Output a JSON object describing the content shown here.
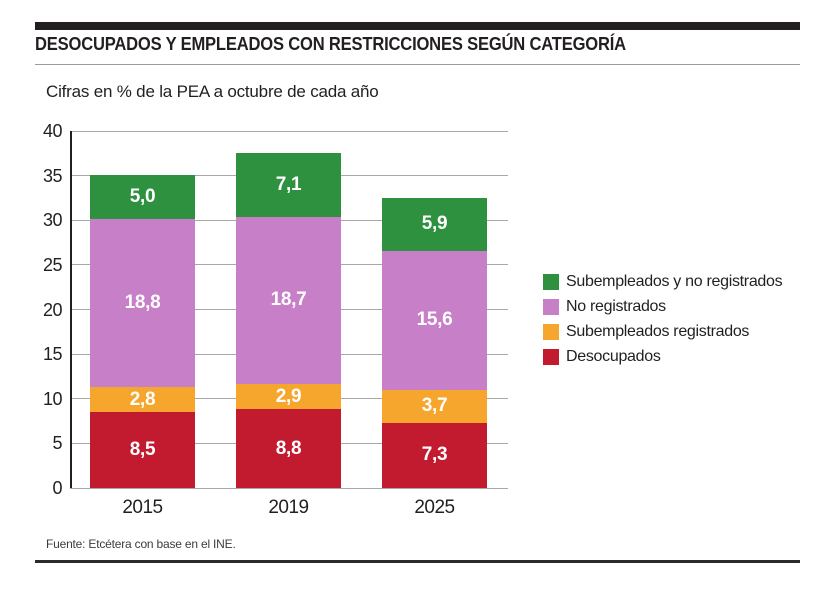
{
  "header": {
    "title": "DESOCUPADOS Y EMPLEADOS CON RESTRICCIONES SEGÚN CATEGORÍA",
    "subtitle": "Cifras en % de la PEA a octubre de cada año"
  },
  "footer": {
    "source": "Fuente: Etcétera con base en el INE."
  },
  "chart_data": {
    "type": "bar",
    "stacked": true,
    "title": "DESOCUPADOS Y EMPLEADOS CON RESTRICCIONES SEGÚN CATEGORÍA",
    "subtitle": "Cifras en % de la PEA a octubre de cada año",
    "categories": [
      "2015",
      "2019",
      "2025"
    ],
    "series": [
      {
        "name": "Desocupados",
        "color": "#c21b2f",
        "values": [
          8.5,
          8.8,
          7.3
        ]
      },
      {
        "name": "Subempleados registrados",
        "color": "#f6a62d",
        "values": [
          2.8,
          2.9,
          3.7
        ]
      },
      {
        "name": "No registrados",
        "color": "#c77fc7",
        "values": [
          18.8,
          18.7,
          15.6
        ]
      },
      {
        "name": "Subempleados y no registrados",
        "color": "#2e9140",
        "values": [
          5.0,
          7.1,
          5.9
        ]
      }
    ],
    "totals": [
      35.1,
      37.5,
      32.5
    ],
    "value_label_decimal_separator": ",",
    "xlabel": "",
    "ylabel": "",
    "ylim": [
      0,
      40
    ],
    "yticks": [
      0,
      5,
      10,
      15,
      20,
      25,
      30,
      35,
      40
    ],
    "grid": true,
    "grid_color": "#a8a8a8",
    "axis_color": "#231f20",
    "legend_position": "right",
    "legend_order": [
      "Subempleados y no registrados",
      "No registrados",
      "Subempleados registrados",
      "Desocupados"
    ]
  }
}
